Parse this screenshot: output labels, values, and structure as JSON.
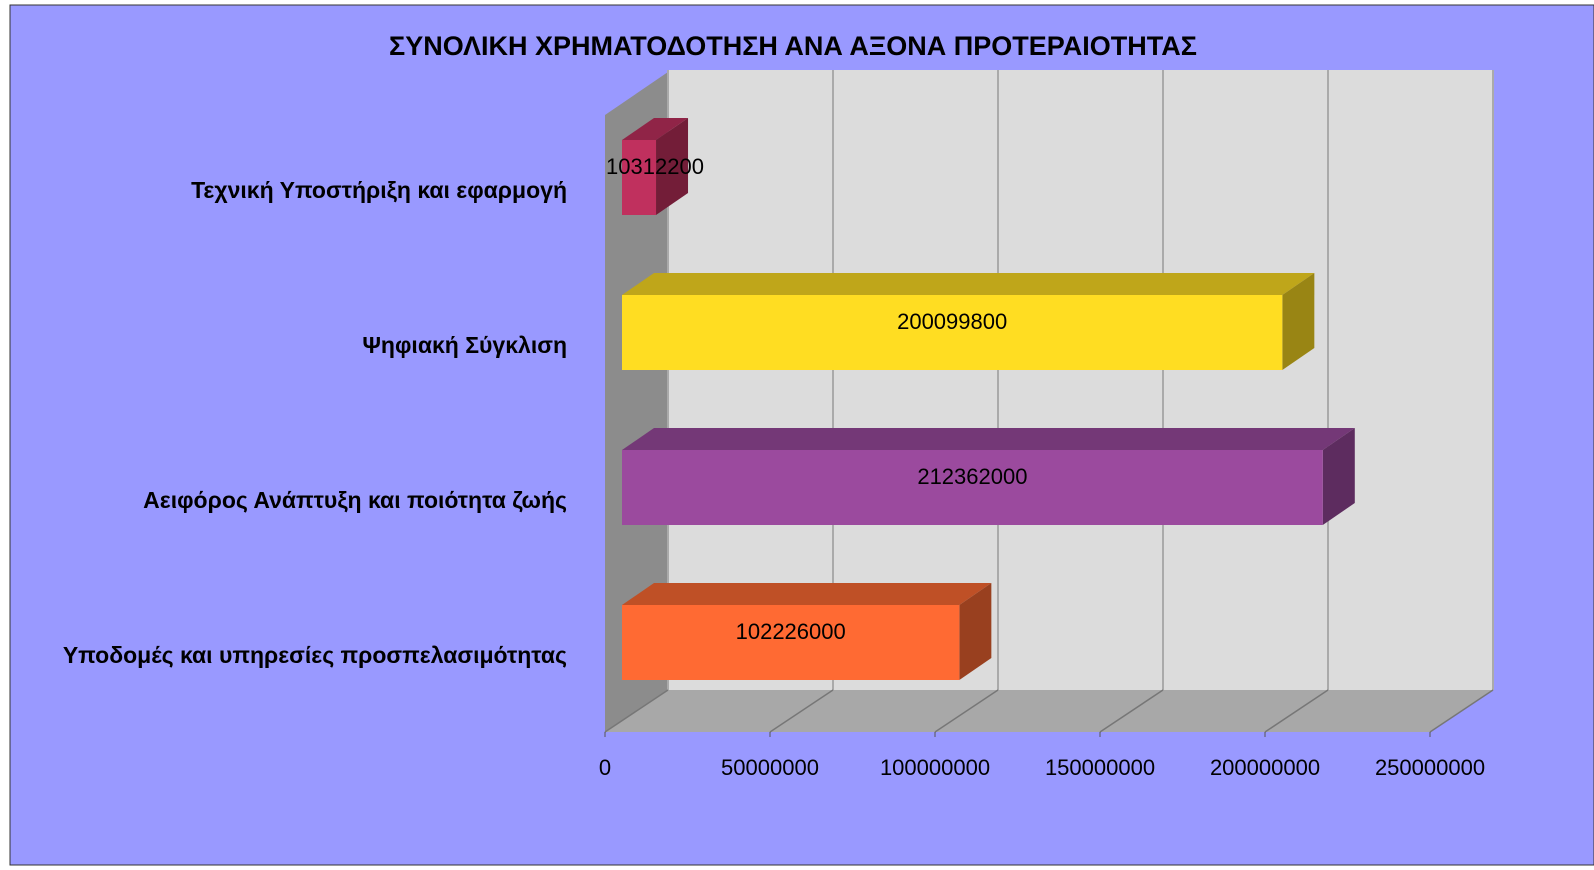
{
  "chart_data": {
    "type": "bar3d_horizontal",
    "title": "ΣΥΝΟΛΙΚΗ ΧΡΗΜΑΤΟΔΟΤΗΣΗ ΑΝΑ ΑΞΟΝΑ ΠΡΟΤΕΡΑΙΟΤΗΤΑΣ",
    "categories": [
      "Υποδομές και υπηρεσίες προσπελασιμότητας",
      "Αειφόρος Ανάπτυξη και ποιότητα ζωής",
      "Ψηφιακή Σύγκλιση",
      "Τεχνική Υποστήριξη και εφαρμογή"
    ],
    "values": [
      102226000,
      212362000,
      200099800,
      10312200
    ],
    "colors": [
      "#ff6a33",
      "#9b4a9e",
      "#ffdd22",
      "#c0305e"
    ],
    "xlim": [
      0,
      250000000
    ],
    "xticks": [
      0,
      50000000,
      100000000,
      150000000,
      200000000,
      250000000
    ],
    "grid": true
  }
}
